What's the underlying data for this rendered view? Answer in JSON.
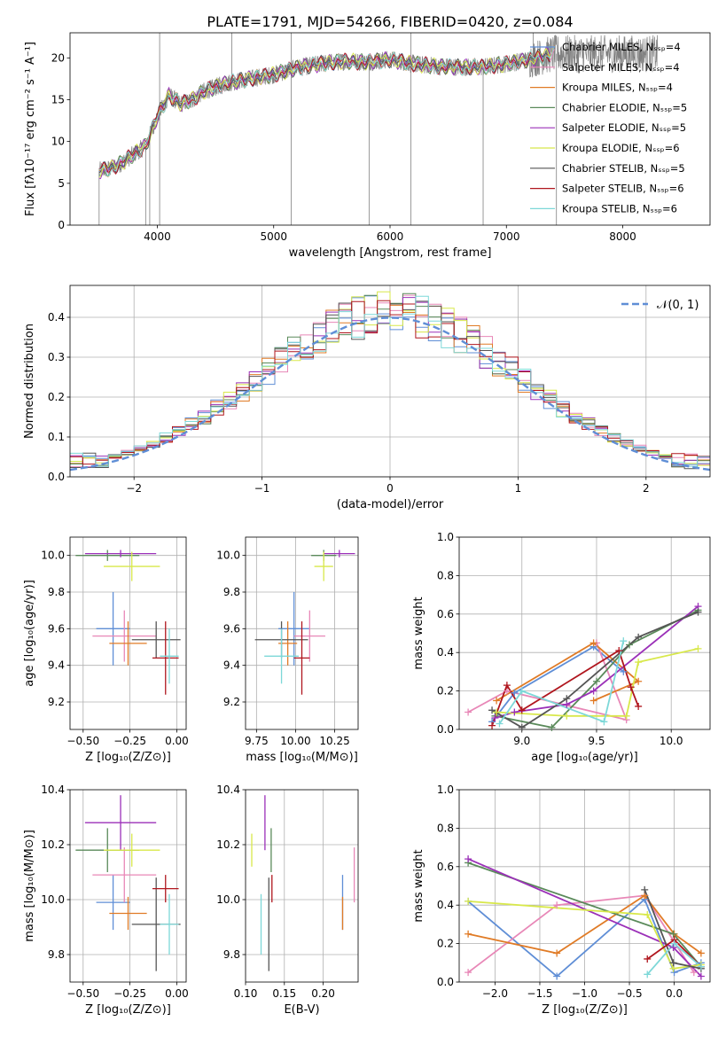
{
  "figure_title": "PLATE=1791, MJD=54266, FIBERID=0420, z=0.084",
  "colors": {
    "Chabrier MILES": "#5f8ed6",
    "Salpeter MILES": "#e887b7",
    "Kroupa MILES": "#e07b26",
    "Chabrier ELODIE": "#5a8a5a",
    "Salpeter ELODIE": "#9b30b8",
    "Kroupa ELODIE": "#d8e84a",
    "Chabrier STELIB": "#555555",
    "Salpeter STELIB": "#b0161e",
    "Kroupa STELIB": "#7dd8d8",
    "data": "#808080"
  },
  "legend_labels": [
    "Chabrier MILES, Nₛₛₚ=4",
    "Salpeter MILES, Nₛₛₚ=4",
    "Kroupa MILES, Nₛₛₚ=4",
    "Chabrier ELODIE, Nₛₛₚ=5",
    "Salpeter ELODIE, Nₛₛₚ=5",
    "Kroupa ELODIE, Nₛₛₚ=6",
    "Chabrier STELIB, Nₛₛₚ=5",
    "Salpeter STELIB, Nₛₛₚ=6",
    "Kroupa STELIB, Nₛₛₚ=6"
  ],
  "chart_data": [
    {
      "id": "spectrum",
      "type": "line",
      "xlabel": "wavelength [Angstrom, rest frame]",
      "ylabel": "Flux [fλ10⁻¹⁷ erg cm⁻² s⁻¹ A⁻¹]",
      "xlim": [
        3250,
        8750
      ],
      "ylim": [
        0,
        23
      ],
      "xticks": [
        4000,
        5000,
        6000,
        7000,
        8000
      ],
      "yticks": [
        0,
        5,
        10,
        15,
        20
      ],
      "grid": false,
      "legend_position": "right",
      "continuum": {
        "x": [
          3500,
          3600,
          3700,
          3800,
          3900,
          4000,
          4100,
          4200,
          4300,
          4400,
          4600,
          4800,
          5000,
          5200,
          5400,
          5600,
          5800,
          6000,
          6200,
          6400,
          6600,
          6800,
          7000,
          7200,
          7400
        ],
        "y": [
          6.5,
          6.8,
          7.5,
          8.5,
          9.5,
          13.0,
          15.5,
          14.5,
          15.0,
          16.0,
          17.0,
          17.5,
          18.0,
          18.8,
          19.3,
          19.6,
          19.5,
          19.8,
          19.3,
          19.0,
          18.9,
          18.9,
          19.3,
          19.8,
          20.5
        ]
      },
      "data_extent": [
        3500,
        8300
      ],
      "spikes": [
        {
          "x": 3500,
          "y": 0
        },
        {
          "x": 3900,
          "y": 0
        },
        {
          "x": 3935,
          "y": 0
        },
        {
          "x": 4020,
          "y": 0
        },
        {
          "x": 4020,
          "y": 23
        },
        {
          "x": 4640,
          "y": 23
        },
        {
          "x": 5150,
          "y": 0
        },
        {
          "x": 5150,
          "y": 23
        },
        {
          "x": 5820,
          "y": 0
        },
        {
          "x": 6180,
          "y": 0
        },
        {
          "x": 6180,
          "y": 23
        },
        {
          "x": 6800,
          "y": 0
        },
        {
          "x": 7230,
          "y": 23
        },
        {
          "x": 7430,
          "y": 0
        }
      ]
    },
    {
      "id": "residuals",
      "type": "histogram",
      "xlabel": "(data-model)/error",
      "ylabel": "Normed distribution",
      "xlim": [
        -2.5,
        2.5
      ],
      "ylim": [
        0,
        0.48
      ],
      "xticks": [
        -2,
        -1,
        0,
        1,
        2
      ],
      "yticks": [
        0.0,
        0.1,
        0.2,
        0.3,
        0.4
      ],
      "grid": true,
      "legend_position": "top-right",
      "reference_curve": {
        "name": "𝒩(0, 1)",
        "mean": 0,
        "sigma": 1
      },
      "bin_width": 0.1
    },
    {
      "id": "age_vs_Z",
      "type": "errorbar",
      "xlabel": "Z [log₁₀(Z/Z⊙)]",
      "ylabel": "age  [log₁₀(age/yr)]",
      "xlim": [
        -0.57,
        0.05
      ],
      "ylim": [
        9.05,
        10.1
      ],
      "xticks": [
        -0.5,
        -0.25,
        0.0
      ],
      "yticks": [
        9.2,
        9.4,
        9.6,
        9.8,
        10.0
      ],
      "grid": true,
      "points": [
        {
          "model": "Chabrier MILES",
          "x": -0.34,
          "xerr": 0.09,
          "y": 9.6,
          "yerr": 0.2
        },
        {
          "model": "Salpeter MILES",
          "x": -0.28,
          "xerr": 0.17,
          "y": 9.56,
          "yerr": 0.14
        },
        {
          "model": "Kroupa MILES",
          "x": -0.26,
          "xerr": 0.1,
          "y": 9.52,
          "yerr": 0.12
        },
        {
          "model": "Chabrier ELODIE",
          "x": -0.37,
          "xerr": 0.17,
          "y": 10.0,
          "yerr": 0.03
        },
        {
          "model": "Salpeter ELODIE",
          "x": -0.3,
          "xerr": 0.19,
          "y": 10.01,
          "yerr": 0.02
        },
        {
          "model": "Kroupa ELODIE",
          "x": -0.24,
          "xerr": 0.15,
          "y": 9.94,
          "yerr": 0.08
        },
        {
          "model": "Chabrier STELIB",
          "x": -0.11,
          "xerr": 0.13,
          "y": 9.54,
          "yerr": 0.1
        },
        {
          "model": "Salpeter STELIB",
          "x": -0.06,
          "xerr": 0.07,
          "y": 9.44,
          "yerr": 0.2
        },
        {
          "model": "Kroupa STELIB",
          "x": -0.04,
          "xerr": 0.05,
          "y": 9.45,
          "yerr": 0.15
        }
      ]
    },
    {
      "id": "age_vs_mass",
      "type": "errorbar",
      "xlabel": "mass [log₁₀(M/M⊙)]",
      "ylabel": "",
      "xlim": [
        9.68,
        10.4
      ],
      "ylim": [
        9.05,
        10.1
      ],
      "xticks": [
        9.75,
        10.0,
        10.25
      ],
      "yticks": [
        9.2,
        9.4,
        9.6,
        9.8,
        10.0
      ],
      "grid": true,
      "points": [
        {
          "model": "Chabrier MILES",
          "x": 9.99,
          "xerr": 0.1,
          "y": 9.6,
          "yerr": 0.2
        },
        {
          "model": "Salpeter MILES",
          "x": 10.09,
          "xerr": 0.1,
          "y": 9.56,
          "yerr": 0.14
        },
        {
          "model": "Kroupa MILES",
          "x": 9.95,
          "xerr": 0.06,
          "y": 9.52,
          "yerr": 0.12
        },
        {
          "model": "Chabrier ELODIE",
          "x": 10.18,
          "xerr": 0.08,
          "y": 10.0,
          "yerr": 0.03
        },
        {
          "model": "Salpeter ELODIE",
          "x": 10.28,
          "xerr": 0.1,
          "y": 10.01,
          "yerr": 0.02
        },
        {
          "model": "Kroupa ELODIE",
          "x": 10.18,
          "xerr": 0.06,
          "y": 9.94,
          "yerr": 0.08
        },
        {
          "model": "Chabrier STELIB",
          "x": 9.91,
          "xerr": 0.17,
          "y": 9.54,
          "yerr": 0.1
        },
        {
          "model": "Salpeter STELIB",
          "x": 10.04,
          "xerr": 0.05,
          "y": 9.44,
          "yerr": 0.2
        },
        {
          "model": "Kroupa STELIB",
          "x": 9.91,
          "xerr": 0.11,
          "y": 9.45,
          "yerr": 0.15
        }
      ]
    },
    {
      "id": "weight_vs_age",
      "type": "line",
      "xlabel": "age  [log₁₀(age/yr)]",
      "ylabel": "mass weight",
      "xlim": [
        8.58,
        10.26
      ],
      "ylim": [
        0,
        1.0
      ],
      "xticks": [
        9.0,
        9.5,
        10.0
      ],
      "yticks": [
        0.0,
        0.2,
        0.4,
        0.6,
        0.8,
        1.0
      ],
      "grid": true,
      "series": [
        {
          "model": "Chabrier MILES",
          "x": [
            8.8,
            8.95,
            9.48,
            9.68
          ],
          "y": [
            0.04,
            0.19,
            0.43,
            0.3
          ]
        },
        {
          "model": "Salpeter MILES",
          "x": [
            8.64,
            8.9,
            9.7,
            9.5
          ],
          "y": [
            0.09,
            0.2,
            0.05,
            0.45
          ]
        },
        {
          "model": "Kroupa MILES",
          "x": [
            8.83,
            9.48,
            9.78,
            9.48
          ],
          "y": [
            0.15,
            0.45,
            0.25,
            0.15
          ]
        },
        {
          "model": "Chabrier ELODIE",
          "x": [
            8.82,
            9.2,
            9.5,
            9.72,
            10.18
          ],
          "y": [
            0.07,
            0.01,
            0.25,
            0.44,
            0.62
          ]
        },
        {
          "model": "Salpeter ELODIE",
          "x": [
            8.82,
            8.95,
            9.3,
            9.48,
            10.18
          ],
          "y": [
            0.06,
            0.09,
            0.13,
            0.2,
            0.64
          ]
        },
        {
          "model": "Kroupa ELODIE",
          "x": [
            8.83,
            9.3,
            9.7,
            9.78,
            10.18
          ],
          "y": [
            0.09,
            0.07,
            0.07,
            0.35,
            0.42
          ]
        },
        {
          "model": "Chabrier STELIB",
          "x": [
            8.8,
            9.0,
            9.3,
            9.78,
            10.18
          ],
          "y": [
            0.1,
            0.01,
            0.16,
            0.48,
            0.61
          ]
        },
        {
          "model": "Salpeter STELIB",
          "x": [
            8.8,
            8.9,
            9.0,
            9.65,
            9.73,
            9.78
          ],
          "y": [
            0.02,
            0.23,
            0.1,
            0.41,
            0.22,
            0.12
          ]
        },
        {
          "model": "Kroupa STELIB",
          "x": [
            8.85,
            9.0,
            9.55,
            9.68
          ],
          "y": [
            0.03,
            0.2,
            0.04,
            0.46
          ]
        }
      ]
    },
    {
      "id": "mass_vs_Z",
      "type": "errorbar",
      "xlabel": "Z [log₁₀(Z/Z⊙)]",
      "ylabel": "mass [log₁₀(M/M⊙)]",
      "xlim": [
        -0.57,
        0.05
      ],
      "ylim": [
        9.7,
        10.4
      ],
      "xticks": [
        -0.5,
        -0.25,
        0.0
      ],
      "yticks": [
        9.8,
        10.0,
        10.2,
        10.4
      ],
      "grid": true,
      "points": [
        {
          "model": "Chabrier MILES",
          "x": -0.34,
          "xerr": 0.09,
          "y": 9.99,
          "yerr": 0.1
        },
        {
          "model": "Salpeter MILES",
          "x": -0.28,
          "xerr": 0.17,
          "y": 10.09,
          "yerr": 0.1
        },
        {
          "model": "Kroupa MILES",
          "x": -0.26,
          "xerr": 0.1,
          "y": 9.95,
          "yerr": 0.06
        },
        {
          "model": "Chabrier ELODIE",
          "x": -0.37,
          "xerr": 0.17,
          "y": 10.18,
          "yerr": 0.08
        },
        {
          "model": "Salpeter ELODIE",
          "x": -0.3,
          "xerr": 0.19,
          "y": 10.28,
          "yerr": 0.1
        },
        {
          "model": "Kroupa ELODIE",
          "x": -0.24,
          "xerr": 0.15,
          "y": 10.18,
          "yerr": 0.06
        },
        {
          "model": "Chabrier STELIB",
          "x": -0.11,
          "xerr": 0.13,
          "y": 9.91,
          "yerr": 0.17
        },
        {
          "model": "Salpeter STELIB",
          "x": -0.06,
          "xerr": 0.07,
          "y": 10.04,
          "yerr": 0.05
        },
        {
          "model": "Kroupa STELIB",
          "x": -0.04,
          "xerr": 0.05,
          "y": 9.91,
          "yerr": 0.11
        }
      ]
    },
    {
      "id": "mass_vs_ebv",
      "type": "errorbar",
      "xlabel": "E(B-V)",
      "ylabel": "",
      "xlim": [
        0.1,
        0.245
      ],
      "ylim": [
        9.7,
        10.4
      ],
      "xticks": [
        0.1,
        0.15,
        0.2
      ],
      "yticks": [
        9.8,
        10.0,
        10.2,
        10.4
      ],
      "grid": true,
      "points": [
        {
          "model": "Chabrier MILES",
          "x": 0.225,
          "xerr": 0.0,
          "y": 9.99,
          "yerr": 0.1
        },
        {
          "model": "Salpeter MILES",
          "x": 0.24,
          "xerr": 0.0,
          "y": 10.09,
          "yerr": 0.1
        },
        {
          "model": "Kroupa MILES",
          "x": 0.225,
          "xerr": 0.0,
          "y": 9.95,
          "yerr": 0.06
        },
        {
          "model": "Chabrier ELODIE",
          "x": 0.133,
          "xerr": 0.0,
          "y": 10.18,
          "yerr": 0.08
        },
        {
          "model": "Salpeter ELODIE",
          "x": 0.125,
          "xerr": 0.0,
          "y": 10.28,
          "yerr": 0.1
        },
        {
          "model": "Kroupa ELODIE",
          "x": 0.108,
          "xerr": 0.0,
          "y": 10.18,
          "yerr": 0.06
        },
        {
          "model": "Chabrier STELIB",
          "x": 0.13,
          "xerr": 0.0,
          "y": 9.91,
          "yerr": 0.17
        },
        {
          "model": "Salpeter STELIB",
          "x": 0.134,
          "xerr": 0.0,
          "y": 10.04,
          "yerr": 0.05
        },
        {
          "model": "Kroupa STELIB",
          "x": 0.12,
          "xerr": 0.0,
          "y": 9.91,
          "yerr": 0.11
        }
      ]
    },
    {
      "id": "weight_vs_Z",
      "type": "line",
      "xlabel": "Z [log₁₀(Z/Z⊙)]",
      "ylabel": "mass weight",
      "xlim": [
        -2.4,
        0.4
      ],
      "ylim": [
        0,
        1.0
      ],
      "xticks": [
        -2.0,
        -1.5,
        -1.0,
        -0.5,
        0.0
      ],
      "yticks": [
        0.0,
        0.2,
        0.4,
        0.6,
        0.8,
        1.0
      ],
      "grid": true,
      "series": [
        {
          "model": "Chabrier MILES",
          "x": [
            -2.3,
            -1.31,
            -0.33,
            0.0,
            0.3
          ],
          "y": [
            0.42,
            0.03,
            0.43,
            0.05,
            0.1
          ]
        },
        {
          "model": "Salpeter MILES",
          "x": [
            -2.3,
            -1.31,
            -0.33,
            0.22
          ],
          "y": [
            0.05,
            0.4,
            0.45,
            0.05
          ]
        },
        {
          "model": "Kroupa MILES",
          "x": [
            -2.3,
            -1.31,
            -0.33,
            0.0,
            0.3
          ],
          "y": [
            0.25,
            0.15,
            0.45,
            0.25,
            0.15
          ]
        },
        {
          "model": "Chabrier ELODIE",
          "x": [
            -2.3,
            -0.01,
            0.3
          ],
          "y": [
            0.62,
            0.25,
            0.08
          ]
        },
        {
          "model": "Salpeter ELODIE",
          "x": [
            -2.3,
            -0.01,
            0.3
          ],
          "y": [
            0.64,
            0.18,
            0.03
          ]
        },
        {
          "model": "Kroupa ELODIE",
          "x": [
            -2.3,
            -0.3,
            -0.01,
            0.3
          ],
          "y": [
            0.42,
            0.35,
            0.07,
            0.09
          ]
        },
        {
          "model": "Chabrier STELIB",
          "x": [
            -0.33,
            -0.01,
            0.3
          ],
          "y": [
            0.48,
            0.1,
            0.07
          ]
        },
        {
          "model": "Salpeter STELIB",
          "x": [
            -0.3,
            0.0,
            0.3
          ],
          "y": [
            0.12,
            0.22,
            0.08
          ]
        },
        {
          "model": "Kroupa STELIB",
          "x": [
            -0.3,
            0.0,
            0.3
          ],
          "y": [
            0.04,
            0.2,
            0.08
          ]
        }
      ]
    }
  ]
}
